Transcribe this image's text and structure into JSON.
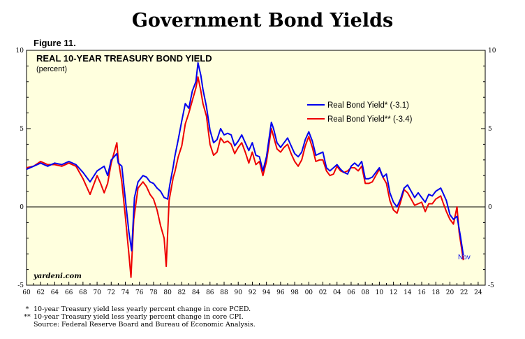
{
  "page": {
    "title": "Government Bond Yields",
    "figure_label": "Figure 11."
  },
  "chart_data": {
    "type": "line",
    "title": "REAL 10-YEAR TREASURY BOND YIELD",
    "subtitle": "(percent)",
    "xlim": [
      1960,
      2025
    ],
    "ylim": [
      -5,
      10
    ],
    "y_ticks": [
      -5,
      0,
      5,
      10
    ],
    "x_tick_labels": [
      "60",
      "62",
      "64",
      "66",
      "68",
      "70",
      "72",
      "74",
      "76",
      "78",
      "80",
      "82",
      "84",
      "86",
      "88",
      "90",
      "92",
      "94",
      "96",
      "98",
      "00",
      "02",
      "04",
      "06",
      "08",
      "10",
      "12",
      "14",
      "16",
      "18",
      "20",
      "22",
      "24"
    ],
    "x_tick_years": [
      1960,
      1962,
      1964,
      1966,
      1968,
      1970,
      1972,
      1974,
      1976,
      1978,
      1980,
      1982,
      1984,
      1986,
      1988,
      1990,
      1992,
      1994,
      1996,
      1998,
      2000,
      2002,
      2004,
      2006,
      2008,
      2010,
      2012,
      2014,
      2016,
      2018,
      2020,
      2022,
      2024
    ],
    "zero_line": true,
    "legend_position": "upper-right",
    "series": [
      {
        "name": "Real Bond Yield* (-3.1)",
        "color": "#0000ee",
        "points": [
          [
            1960,
            2.4
          ],
          [
            1961,
            2.6
          ],
          [
            1962,
            2.8
          ],
          [
            1963,
            2.6
          ],
          [
            1964,
            2.8
          ],
          [
            1965,
            2.7
          ],
          [
            1966,
            2.9
          ],
          [
            1967,
            2.7
          ],
          [
            1968,
            2.2
          ],
          [
            1969,
            1.6
          ],
          [
            1970,
            2.3
          ],
          [
            1971,
            2.6
          ],
          [
            1971.5,
            2.0
          ],
          [
            1972,
            3.0
          ],
          [
            1972.8,
            3.4
          ],
          [
            1973,
            2.8
          ],
          [
            1973.5,
            2.6
          ],
          [
            1974,
            0.5
          ],
          [
            1974.5,
            -1.6
          ],
          [
            1974.9,
            -2.8
          ],
          [
            1975.3,
            0.6
          ],
          [
            1975.8,
            1.6
          ],
          [
            1976.5,
            2.0
          ],
          [
            1977,
            1.9
          ],
          [
            1977.5,
            1.6
          ],
          [
            1978,
            1.5
          ],
          [
            1978.5,
            1.2
          ],
          [
            1979,
            1.0
          ],
          [
            1979.5,
            0.6
          ],
          [
            1980,
            0.5
          ],
          [
            1980.3,
            1.4
          ],
          [
            1980.8,
            2.6
          ],
          [
            1981,
            3.2
          ],
          [
            1981.5,
            4.3
          ],
          [
            1982,
            5.5
          ],
          [
            1982.5,
            6.6
          ],
          [
            1983,
            6.3
          ],
          [
            1983.5,
            7.4
          ],
          [
            1984,
            8.0
          ],
          [
            1984.3,
            9.2
          ],
          [
            1984.7,
            8.4
          ],
          [
            1985,
            7.5
          ],
          [
            1985.5,
            6.4
          ],
          [
            1986,
            4.9
          ],
          [
            1986.5,
            4.1
          ],
          [
            1987,
            4.3
          ],
          [
            1987.5,
            5.0
          ],
          [
            1988,
            4.6
          ],
          [
            1988.5,
            4.7
          ],
          [
            1989,
            4.6
          ],
          [
            1989.5,
            3.9
          ],
          [
            1990,
            4.2
          ],
          [
            1990.5,
            4.6
          ],
          [
            1991,
            4.1
          ],
          [
            1991.5,
            3.6
          ],
          [
            1992,
            4.1
          ],
          [
            1992.5,
            3.3
          ],
          [
            1993,
            3.2
          ],
          [
            1993.5,
            2.3
          ],
          [
            1994,
            3.2
          ],
          [
            1994.7,
            5.4
          ],
          [
            1995,
            5.0
          ],
          [
            1995.5,
            4.1
          ],
          [
            1996,
            3.8
          ],
          [
            1996.5,
            4.1
          ],
          [
            1997,
            4.4
          ],
          [
            1997.5,
            3.9
          ],
          [
            1998,
            3.4
          ],
          [
            1998.5,
            3.2
          ],
          [
            1999,
            3.5
          ],
          [
            1999.5,
            4.3
          ],
          [
            2000,
            4.8
          ],
          [
            2000.5,
            4.2
          ],
          [
            2001,
            3.3
          ],
          [
            2001.5,
            3.4
          ],
          [
            2002,
            3.5
          ],
          [
            2002.5,
            2.5
          ],
          [
            2003,
            2.3
          ],
          [
            2003.5,
            2.5
          ],
          [
            2004,
            2.7
          ],
          [
            2004.5,
            2.4
          ],
          [
            2005,
            2.2
          ],
          [
            2005.5,
            2.1
          ],
          [
            2006,
            2.6
          ],
          [
            2006.5,
            2.8
          ],
          [
            2007,
            2.6
          ],
          [
            2007.5,
            2.9
          ],
          [
            2008,
            1.8
          ],
          [
            2008.5,
            1.8
          ],
          [
            2009,
            1.9
          ],
          [
            2009.5,
            2.2
          ],
          [
            2010,
            2.5
          ],
          [
            2010.5,
            1.9
          ],
          [
            2011,
            2.1
          ],
          [
            2011.5,
            0.9
          ],
          [
            2012,
            0.3
          ],
          [
            2012.5,
            0.0
          ],
          [
            2013,
            0.5
          ],
          [
            2013.5,
            1.2
          ],
          [
            2014,
            1.4
          ],
          [
            2014.5,
            1.0
          ],
          [
            2015,
            0.6
          ],
          [
            2015.5,
            0.9
          ],
          [
            2016,
            0.6
          ],
          [
            2016.5,
            0.3
          ],
          [
            2017,
            0.8
          ],
          [
            2017.5,
            0.7
          ],
          [
            2018,
            1.0
          ],
          [
            2018.7,
            1.2
          ],
          [
            2019,
            0.9
          ],
          [
            2019.5,
            0.4
          ],
          [
            2020,
            -0.5
          ],
          [
            2020.5,
            -0.8
          ],
          [
            2021,
            -0.6
          ],
          [
            2021.5,
            -1.9
          ],
          [
            2021.9,
            -3.1
          ]
        ]
      },
      {
        "name": "Real Bond Yield** (-3.4)",
        "color": "#ee0000",
        "points": [
          [
            1960,
            2.5
          ],
          [
            1961,
            2.6
          ],
          [
            1962,
            2.9
          ],
          [
            1963,
            2.7
          ],
          [
            1964,
            2.7
          ],
          [
            1965,
            2.6
          ],
          [
            1966,
            2.8
          ],
          [
            1967,
            2.6
          ],
          [
            1968,
            1.8
          ],
          [
            1969,
            0.8
          ],
          [
            1970,
            2.0
          ],
          [
            1970.5,
            1.5
          ],
          [
            1971,
            0.9
          ],
          [
            1971.5,
            1.5
          ],
          [
            1972,
            2.8
          ],
          [
            1972.8,
            4.1
          ],
          [
            1973,
            3.0
          ],
          [
            1973.5,
            1.6
          ],
          [
            1974,
            -0.6
          ],
          [
            1974.5,
            -3.0
          ],
          [
            1974.8,
            -4.5
          ],
          [
            1975.2,
            -0.8
          ],
          [
            1975.8,
            1.2
          ],
          [
            1976.5,
            1.6
          ],
          [
            1977,
            1.3
          ],
          [
            1977.5,
            0.8
          ],
          [
            1978,
            0.5
          ],
          [
            1978.5,
            -0.2
          ],
          [
            1979,
            -1.2
          ],
          [
            1979.5,
            -2.0
          ],
          [
            1979.8,
            -3.8
          ],
          [
            1980.2,
            0.4
          ],
          [
            1980.8,
            1.9
          ],
          [
            1981,
            2.2
          ],
          [
            1981.5,
            3.2
          ],
          [
            1982,
            3.9
          ],
          [
            1982.5,
            5.3
          ],
          [
            1983,
            6.0
          ],
          [
            1983.5,
            6.8
          ],
          [
            1984,
            7.6
          ],
          [
            1984.3,
            8.3
          ],
          [
            1984.7,
            7.4
          ],
          [
            1985,
            6.6
          ],
          [
            1985.5,
            5.8
          ],
          [
            1986,
            4.0
          ],
          [
            1986.5,
            3.3
          ],
          [
            1987,
            3.5
          ],
          [
            1987.5,
            4.4
          ],
          [
            1988,
            4.1
          ],
          [
            1988.5,
            4.2
          ],
          [
            1989,
            4.0
          ],
          [
            1989.5,
            3.4
          ],
          [
            1990,
            3.8
          ],
          [
            1990.5,
            4.1
          ],
          [
            1991,
            3.5
          ],
          [
            1991.5,
            2.8
          ],
          [
            1992,
            3.5
          ],
          [
            1992.5,
            2.7
          ],
          [
            1993,
            2.9
          ],
          [
            1993.5,
            2.0
          ],
          [
            1994,
            2.9
          ],
          [
            1994.7,
            5.0
          ],
          [
            1995,
            4.5
          ],
          [
            1995.5,
            3.7
          ],
          [
            1996,
            3.5
          ],
          [
            1996.5,
            3.8
          ],
          [
            1997,
            4.0
          ],
          [
            1997.5,
            3.4
          ],
          [
            1998,
            2.9
          ],
          [
            1998.5,
            2.6
          ],
          [
            1999,
            3.0
          ],
          [
            1999.5,
            3.9
          ],
          [
            2000,
            4.5
          ],
          [
            2000.5,
            3.8
          ],
          [
            2001,
            2.9
          ],
          [
            2001.5,
            3.0
          ],
          [
            2002,
            3.0
          ],
          [
            2002.5,
            2.3
          ],
          [
            2003,
            2.0
          ],
          [
            2003.5,
            2.1
          ],
          [
            2004,
            2.6
          ],
          [
            2004.5,
            2.3
          ],
          [
            2005,
            2.2
          ],
          [
            2005.5,
            2.3
          ],
          [
            2006,
            2.5
          ],
          [
            2006.5,
            2.5
          ],
          [
            2007,
            2.3
          ],
          [
            2007.5,
            2.6
          ],
          [
            2008,
            1.5
          ],
          [
            2008.5,
            1.5
          ],
          [
            2009,
            1.6
          ],
          [
            2009.5,
            2.0
          ],
          [
            2010,
            2.4
          ],
          [
            2010.5,
            1.9
          ],
          [
            2011,
            1.5
          ],
          [
            2011.5,
            0.4
          ],
          [
            2012,
            -0.2
          ],
          [
            2012.5,
            -0.4
          ],
          [
            2013,
            0.3
          ],
          [
            2013.5,
            1.1
          ],
          [
            2014,
            0.9
          ],
          [
            2014.5,
            0.5
          ],
          [
            2015,
            0.1
          ],
          [
            2015.5,
            0.2
          ],
          [
            2016,
            0.3
          ],
          [
            2016.5,
            -0.3
          ],
          [
            2017,
            0.2
          ],
          [
            2017.5,
            0.2
          ],
          [
            2018,
            0.5
          ],
          [
            2018.7,
            0.7
          ],
          [
            2019,
            0.3
          ],
          [
            2019.5,
            -0.3
          ],
          [
            2020,
            -0.8
          ],
          [
            2020.5,
            -1.1
          ],
          [
            2021,
            0.0
          ],
          [
            2021.3,
            -1.6
          ],
          [
            2021.9,
            -3.4
          ]
        ]
      }
    ],
    "annotation": "Nov",
    "watermark": "yardeni.com",
    "footnotes": [
      {
        "mark": "*",
        "text": "10-year Treasury yield less yearly percent change in core PCED."
      },
      {
        "mark": "**",
        "text": "10-year Treasury yield less yearly percent change in core CPI."
      },
      {
        "mark": "",
        "text": "Source: Federal Reserve Board and Bureau of Economic Analysis."
      }
    ]
  }
}
